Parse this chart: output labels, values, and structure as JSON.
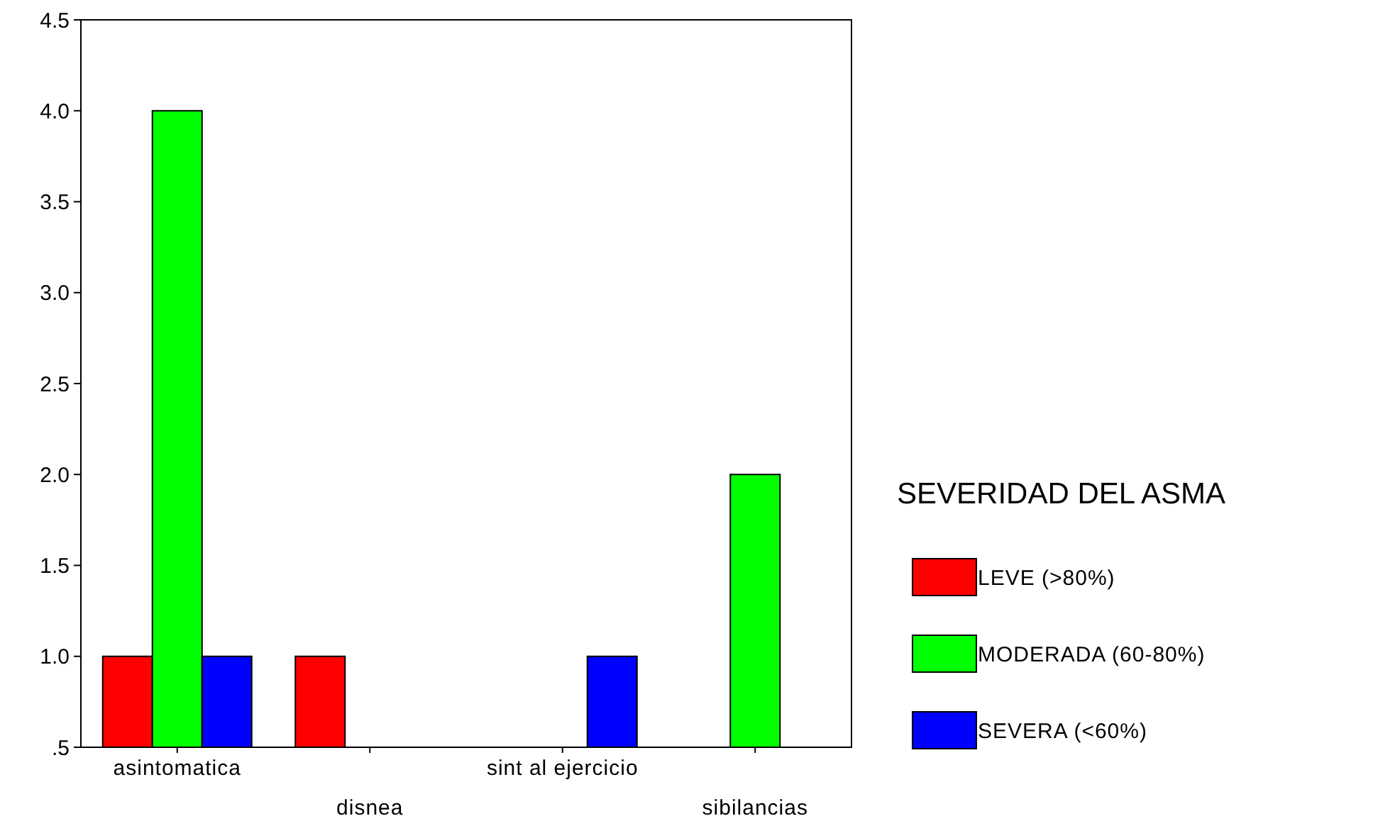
{
  "chart_data": {
    "type": "bar",
    "legend_title": "SEVERIDAD DEL ASMA",
    "categories": [
      "asintomatica",
      "disnea",
      "sint al ejercicio",
      "sibilancias"
    ],
    "series": [
      {
        "name": "LEVE (>80%)",
        "color": "#ff0000",
        "values": [
          1,
          1,
          null,
          null
        ]
      },
      {
        "name": "MODERADA (60-80%)",
        "color": "#00ff00",
        "values": [
          4,
          null,
          null,
          2
        ]
      },
      {
        "name": "SEVERA (<60%)",
        "color": "#0000ff",
        "values": [
          1,
          null,
          1,
          null
        ]
      }
    ],
    "ylim": [
      0.5,
      4.5
    ],
    "yticks": [
      {
        "value": 0.5,
        "label": ".5"
      },
      {
        "value": 1,
        "label": "1.0"
      },
      {
        "value": 1.5,
        "label": "1.5"
      },
      {
        "value": 2,
        "label": "2.0"
      },
      {
        "value": 2.5,
        "label": "2.5"
      },
      {
        "value": 3,
        "label": "3.0"
      },
      {
        "value": 3.5,
        "label": "3.5"
      },
      {
        "value": 4,
        "label": "4.0"
      },
      {
        "value": 4.5,
        "label": "4.5"
      }
    ],
    "legend": "right",
    "grid": false
  }
}
